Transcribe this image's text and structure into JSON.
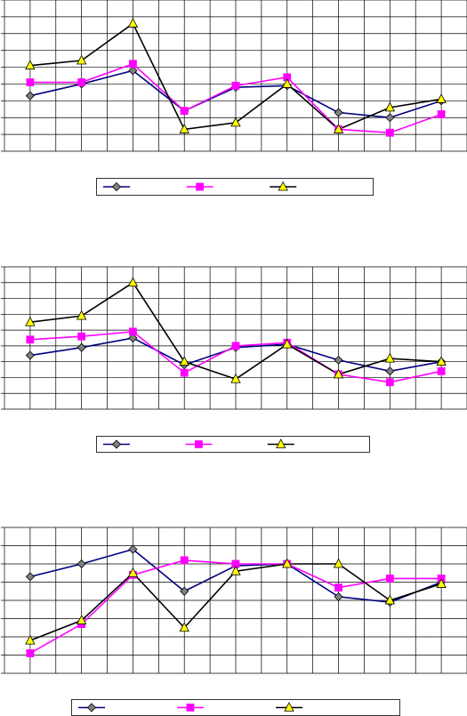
{
  "chart_data": [
    {
      "type": "line",
      "categories": [
        null,
        null,
        null,
        null,
        null,
        null,
        null,
        null,
        null
      ],
      "ylim": [
        0,
        9
      ],
      "yticks": [
        0,
        1,
        2,
        3,
        4,
        5,
        6,
        7,
        8,
        9
      ],
      "grid": true,
      "series": [
        {
          "color": "#000080",
          "marker": "diamond",
          "marker_color": "#808080",
          "values": [
            3.3,
            4.0,
            4.8,
            2.4,
            3.8,
            3.9,
            2.3,
            2.0,
            3.0
          ]
        },
        {
          "color": "#ff00ff",
          "marker": "square",
          "marker_color": "#ff00ff",
          "values": [
            4.1,
            4.1,
            5.2,
            2.4,
            3.9,
            4.4,
            1.3,
            1.1,
            2.2
          ]
        },
        {
          "color": "#000000",
          "marker": "triangle",
          "marker_color": "#ffff00",
          "values": [
            5.1,
            5.4,
            7.6,
            1.3,
            1.7,
            4.0,
            1.3,
            2.6,
            3.1
          ]
        }
      ]
    },
    {
      "type": "line",
      "categories": [
        null,
        null,
        null,
        null,
        null,
        null,
        null,
        null,
        null
      ],
      "ylim": [
        0,
        9
      ],
      "yticks": [
        0,
        1,
        2,
        3,
        4,
        5,
        6,
        7,
        8,
        9
      ],
      "grid": true,
      "series": [
        {
          "color": "#000080",
          "marker": "diamond",
          "marker_color": "#808080",
          "values": [
            3.4,
            3.9,
            4.5,
            2.8,
            3.9,
            4.1,
            3.1,
            2.4,
            3.0
          ]
        },
        {
          "color": "#ff00ff",
          "marker": "square",
          "marker_color": "#ff00ff",
          "values": [
            4.4,
            4.6,
            4.9,
            2.3,
            4.0,
            4.2,
            2.2,
            1.7,
            2.4
          ]
        },
        {
          "color": "#000000",
          "marker": "triangle",
          "marker_color": "#ffff00",
          "values": [
            5.5,
            5.9,
            8.0,
            3.0,
            1.9,
            4.1,
            2.2,
            3.2,
            3.0
          ]
        }
      ]
    },
    {
      "type": "line",
      "categories": [
        null,
        null,
        null,
        null,
        null,
        null,
        null,
        null,
        null
      ],
      "ylim": [
        0,
        8
      ],
      "yticks": [
        0,
        1,
        2,
        3,
        4,
        5,
        6,
        7,
        8
      ],
      "grid": true,
      "series": [
        {
          "color": "#000080",
          "marker": "diamond",
          "marker_color": "#808080",
          "values": [
            5.3,
            6.0,
            6.8,
            4.5,
            5.9,
            6.0,
            4.2,
            3.9,
            5.0
          ]
        },
        {
          "color": "#ff00ff",
          "marker": "square",
          "marker_color": "#ff00ff",
          "values": [
            1.1,
            2.7,
            5.4,
            6.2,
            6.0,
            6.0,
            4.7,
            5.2,
            5.2
          ]
        },
        {
          "color": "#000000",
          "marker": "triangle",
          "marker_color": "#ffff00",
          "values": [
            1.8,
            2.9,
            5.5,
            2.5,
            5.6,
            6.0,
            6.0,
            4.0,
            4.9
          ]
        }
      ]
    }
  ]
}
